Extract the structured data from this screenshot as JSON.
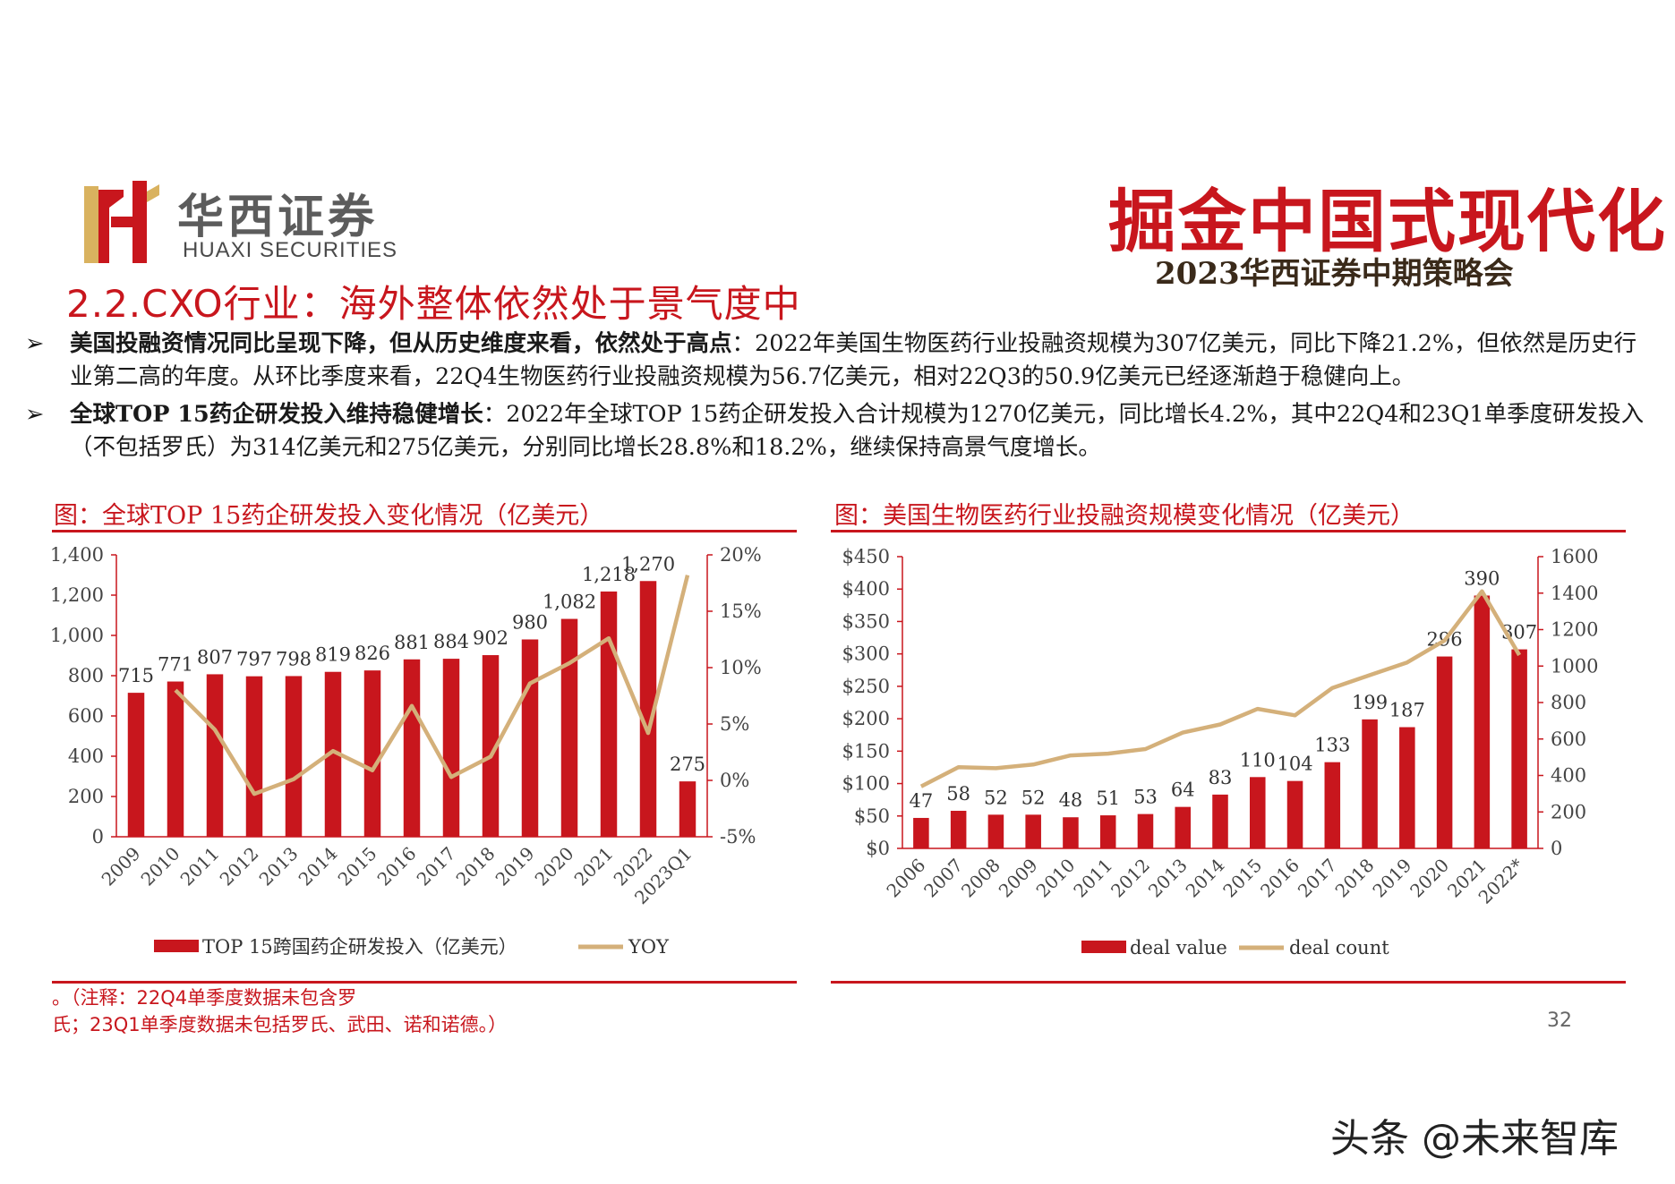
{
  "header": {
    "logo_cn": "华西证券",
    "logo_en": "HUAXI SECURITIES",
    "slogan": "掘金中国式现代化",
    "conference": "2023华西证券中期策略会"
  },
  "section_title": "2.2.CXO行业：海外整体依然处于景气度中",
  "bullets": [
    {
      "lead": "美国投融资情况同比呈现下降，但从历史维度来看，依然处于高点",
      "text": "：2022年美国生物医药行业投融资规模为307亿美元，同比下降21.2%，但依然是历史行业第二高的年度。从环比季度来看，22Q4生物医药行业投融资规模为56.7亿美元，相对22Q3的50.9亿美元已经逐渐趋于稳健向上。"
    },
    {
      "lead": "全球TOP 15药企研发投入维持稳健增长",
      "text": "：2022年全球TOP 15药企研发投入合计规模为1270亿美元，同比增长4.2%，其中22Q4和23Q1单季度研发投入（不包括罗氏）为314亿美元和275亿美元，分别同比增长28.8%和18.2%，继续保持高景气度增长。"
    }
  ],
  "charts": {
    "left_title": "图：全球TOP 15药企研发投入变化情况（亿美元）",
    "right_title": "图：美国生物医药行业投融资规模变化情况（亿美元）"
  },
  "note": "。（注释：22Q4单季度数据未包含罗氏；23Q1单季度数据未包括罗氏、武田、诺和诺德。）",
  "note_line1": "。（注释：22Q4单季度数据未包含罗",
  "note_line2": "氏；23Q1单季度数据未包括罗氏、武田、诺和诺德。）",
  "page_number": "32",
  "watermark": "头条 @未来智库",
  "colors": {
    "accent": "#c8161d",
    "line": "#d4b07a"
  },
  "chart_data": [
    {
      "type": "bar",
      "categories": [
        "2009",
        "2010",
        "2011",
        "2012",
        "2013",
        "2014",
        "2015",
        "2016",
        "2017",
        "2018",
        "2019",
        "2020",
        "2021",
        "2022",
        "2023Q1"
      ],
      "series": [
        {
          "name": "TOP 15跨国药企研发投入（亿美元）",
          "type": "bar",
          "axis": "left",
          "values": [
            715,
            771,
            807,
            797,
            798,
            819,
            826,
            881,
            884,
            902,
            980,
            1082,
            1218,
            1270,
            275
          ],
          "labels": [
            "715",
            "771",
            "807",
            "797",
            "798",
            "819",
            "826",
            "881",
            "884",
            "902",
            "980",
            "1,082",
            "1,218",
            "1,270",
            "275"
          ]
        },
        {
          "name": "YOY",
          "type": "line",
          "axis": "right",
          "values": [
            null,
            8.0,
            4.5,
            -1.2,
            0.1,
            2.6,
            0.9,
            6.6,
            0.3,
            2.1,
            8.6,
            10.4,
            12.6,
            4.2,
            18.2
          ]
        }
      ],
      "ylim": [
        0,
        1400
      ],
      "yticks": [
        "0",
        "200",
        "400",
        "600",
        "800",
        "1,000",
        "1,200",
        "1,400"
      ],
      "y2lim": [
        -5,
        20
      ],
      "y2ticks": [
        "-5%",
        "0%",
        "5%",
        "10%",
        "15%",
        "20%"
      ],
      "legend": "bottom"
    },
    {
      "type": "bar",
      "categories": [
        "2006",
        "2007",
        "2008",
        "2009",
        "2010",
        "2011",
        "2012",
        "2013",
        "2014",
        "2015",
        "2016",
        "2017",
        "2018",
        "2019",
        "2020",
        "2021",
        "2022*"
      ],
      "series": [
        {
          "name": "deal value",
          "type": "bar",
          "axis": "left",
          "values": [
            47,
            58,
            52,
            52,
            48,
            51,
            53,
            64,
            83,
            110,
            104,
            133,
            199,
            187,
            296,
            390,
            307
          ]
        },
        {
          "name": "deal count",
          "type": "line",
          "axis": "right",
          "values": [
            340,
            445,
            440,
            460,
            510,
            520,
            545,
            635,
            680,
            765,
            730,
            880,
            950,
            1020,
            1140,
            1410,
            1060
          ]
        }
      ],
      "ylim": [
        0,
        450
      ],
      "yticks": [
        "$0",
        "$50",
        "$100",
        "$150",
        "$200",
        "$250",
        "$300",
        "$350",
        "$400",
        "$450"
      ],
      "y2lim": [
        0,
        1600
      ],
      "y2ticks": [
        "0",
        "200",
        "400",
        "600",
        "800",
        "1000",
        "1200",
        "1400",
        "1600"
      ],
      "legend": "bottom"
    }
  ]
}
